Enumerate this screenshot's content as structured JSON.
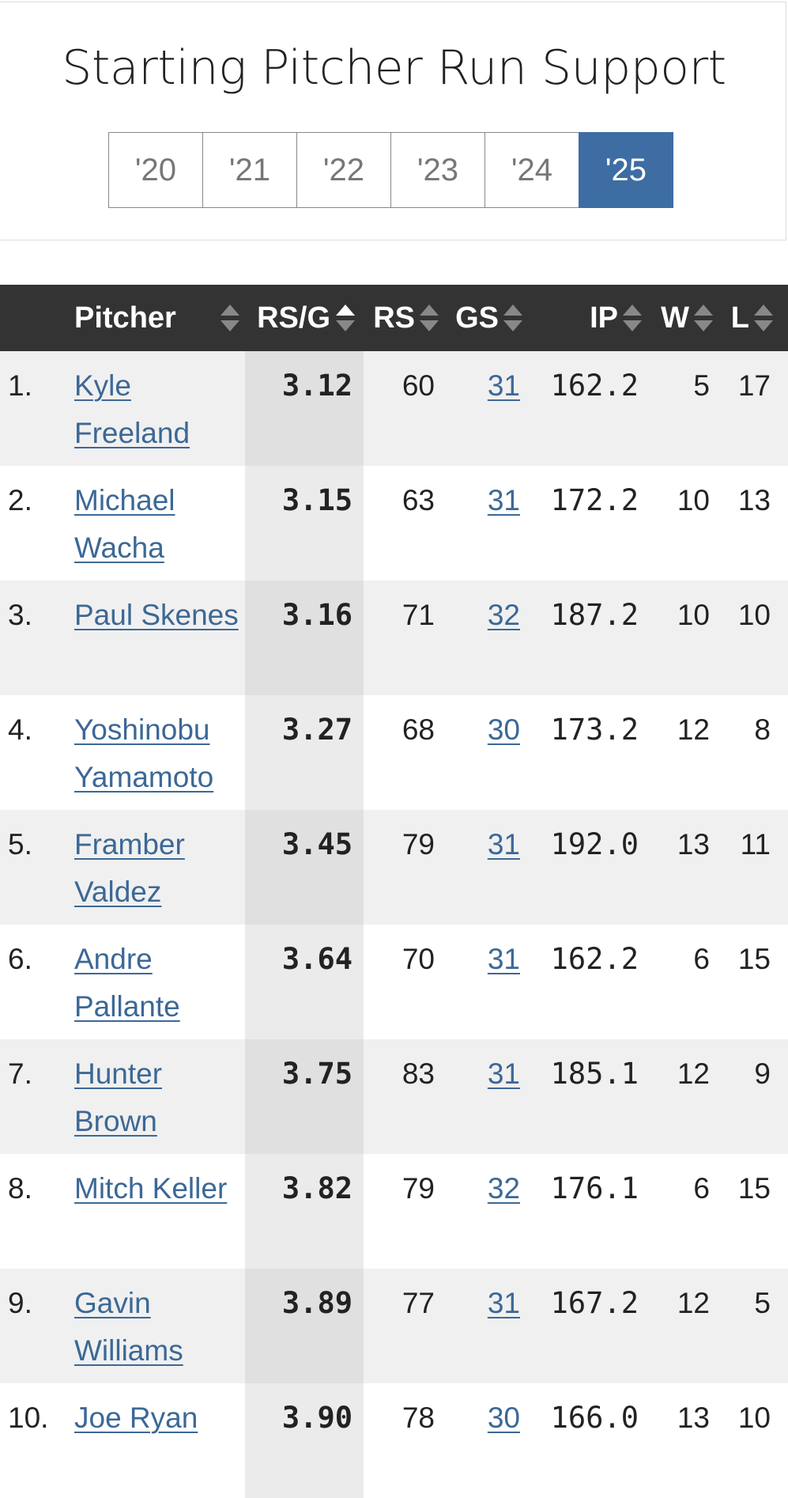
{
  "header": {
    "title": "Starting Pitcher Run Support",
    "tabs": [
      "'20",
      "'21",
      "'22",
      "'23",
      "'24",
      "'25"
    ]
  },
  "table": {
    "columns": [
      "Pitcher",
      "RS/G",
      "RS",
      "GS",
      "IP",
      "W",
      "L"
    ],
    "rows": [
      [
        "1.",
        "Kyle Freeland",
        "3.12",
        "60",
        "31",
        "162.2",
        "5",
        "17"
      ],
      [
        "2.",
        "Michael Wacha",
        "3.15",
        "63",
        "31",
        "172.2",
        "10",
        "13"
      ],
      [
        "3.",
        "Paul Skenes",
        "3.16",
        "71",
        "32",
        "187.2",
        "10",
        "10"
      ],
      [
        "4.",
        "Yoshinobu Yamamoto",
        "3.27",
        "68",
        "30",
        "173.2",
        "12",
        "8"
      ],
      [
        "5.",
        "Framber Valdez",
        "3.45",
        "79",
        "31",
        "192.0",
        "13",
        "11"
      ],
      [
        "6.",
        "Andre Pallante",
        "3.64",
        "70",
        "31",
        "162.2",
        "6",
        "15"
      ],
      [
        "7.",
        "Hunter Brown",
        "3.75",
        "83",
        "31",
        "185.1",
        "12",
        "9"
      ],
      [
        "8.",
        "Mitch Keller",
        "3.82",
        "79",
        "32",
        "176.1",
        "6",
        "15"
      ],
      [
        "9.",
        "Gavin Williams",
        "3.89",
        "77",
        "31",
        "167.2",
        "12",
        "5"
      ],
      [
        "10.",
        "Joe Ryan",
        "3.90",
        "78",
        "30",
        "166.0",
        "13",
        "10"
      ]
    ]
  }
}
